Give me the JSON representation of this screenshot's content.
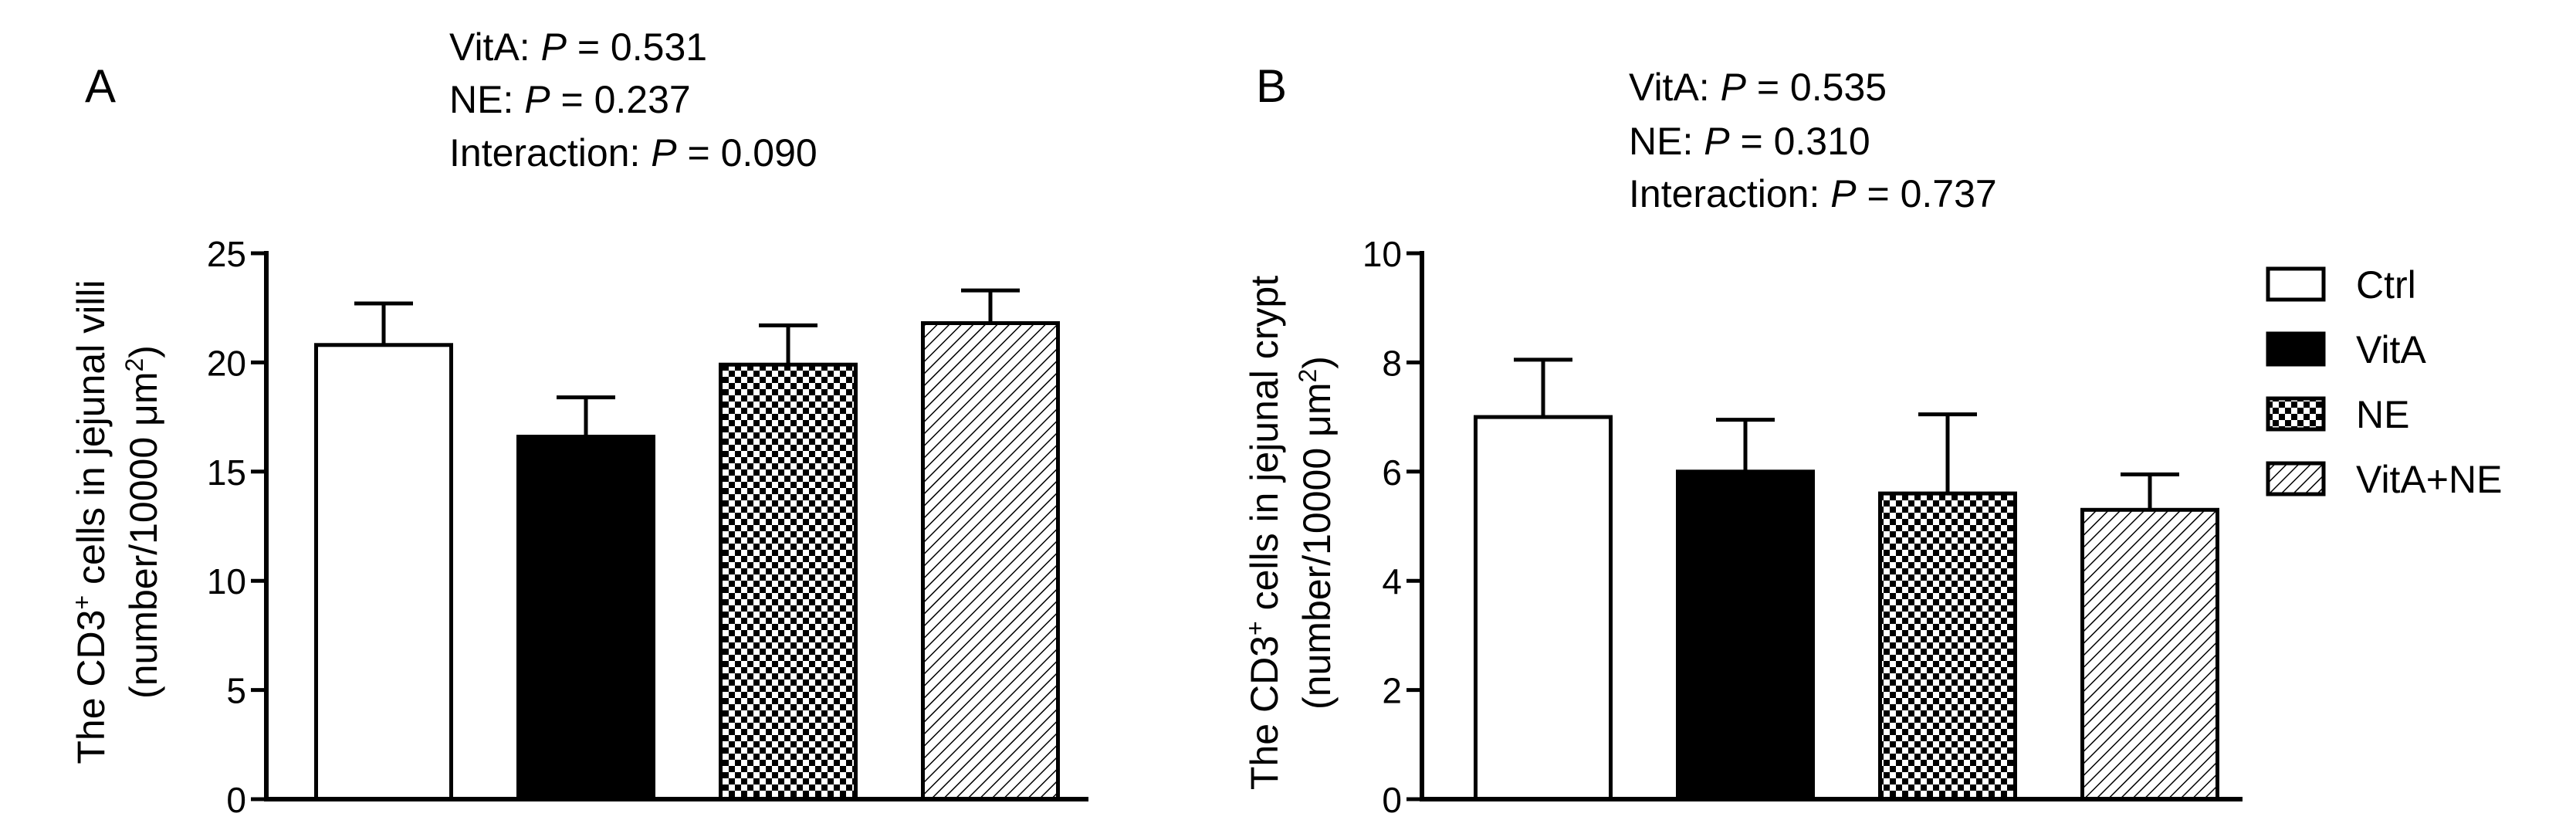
{
  "chart_data": [
    {
      "panel": "A",
      "type": "bar",
      "categories": [
        "Ctrl",
        "VitA",
        "NE",
        "VitA+NE"
      ],
      "values": [
        20.8,
        16.6,
        19.9,
        21.8
      ],
      "errors": [
        1.9,
        1.8,
        1.8,
        1.5
      ],
      "stats": [
        {
          "label": "VitA: ",
          "p_symbol": "P",
          "value": " = 0.531"
        },
        {
          "label": "NE: ",
          "p_symbol": "P",
          "value": " = 0.237"
        },
        {
          "label": "Interaction: ",
          "p_symbol": "P",
          "value": " = 0.090"
        }
      ],
      "ylabel_line1_a": "The CD3",
      "ylabel_line1_sup": "+",
      "ylabel_line1_b": " cells in jejunal villi",
      "ylabel_line2_a": "(number/10000 μm",
      "ylabel_line2_sup": "2",
      "ylabel_line2_b": ")",
      "ylim": [
        0,
        25
      ],
      "yticks": [
        0,
        5,
        10,
        15,
        20,
        25
      ],
      "xlabel": ""
    },
    {
      "panel": "B",
      "type": "bar",
      "categories": [
        "Ctrl",
        "VitA",
        "NE",
        "VitA+NE"
      ],
      "values": [
        7.0,
        6.0,
        5.6,
        5.3
      ],
      "errors": [
        1.05,
        0.95,
        1.45,
        0.65
      ],
      "stats": [
        {
          "label": "VitA: ",
          "p_symbol": "P",
          "value": " = 0.535"
        },
        {
          "label": "NE: ",
          "p_symbol": "P",
          "value": " = 0.310"
        },
        {
          "label": "Interaction: ",
          "p_symbol": "P",
          "value": " = 0.737"
        }
      ],
      "ylabel_line1_a": "The CD3",
      "ylabel_line1_sup": "+",
      "ylabel_line1_b": " cells in jejunal crypt",
      "ylabel_line2_a": "(number/10000 μm",
      "ylabel_line2_sup": "2",
      "ylabel_line2_b": ")",
      "ylim": [
        0,
        10
      ],
      "yticks": [
        0,
        2,
        4,
        6,
        8,
        10
      ],
      "xlabel": ""
    }
  ],
  "legend": {
    "placement": "right",
    "items": [
      {
        "label": "Ctrl",
        "fill": "white"
      },
      {
        "label": "VitA",
        "fill": "black"
      },
      {
        "label": "NE",
        "fill": "checker"
      },
      {
        "label": "VitA+NE",
        "fill": "hatch"
      }
    ]
  },
  "colors": {
    "ink": "#000000",
    "background": "#ffffff"
  }
}
